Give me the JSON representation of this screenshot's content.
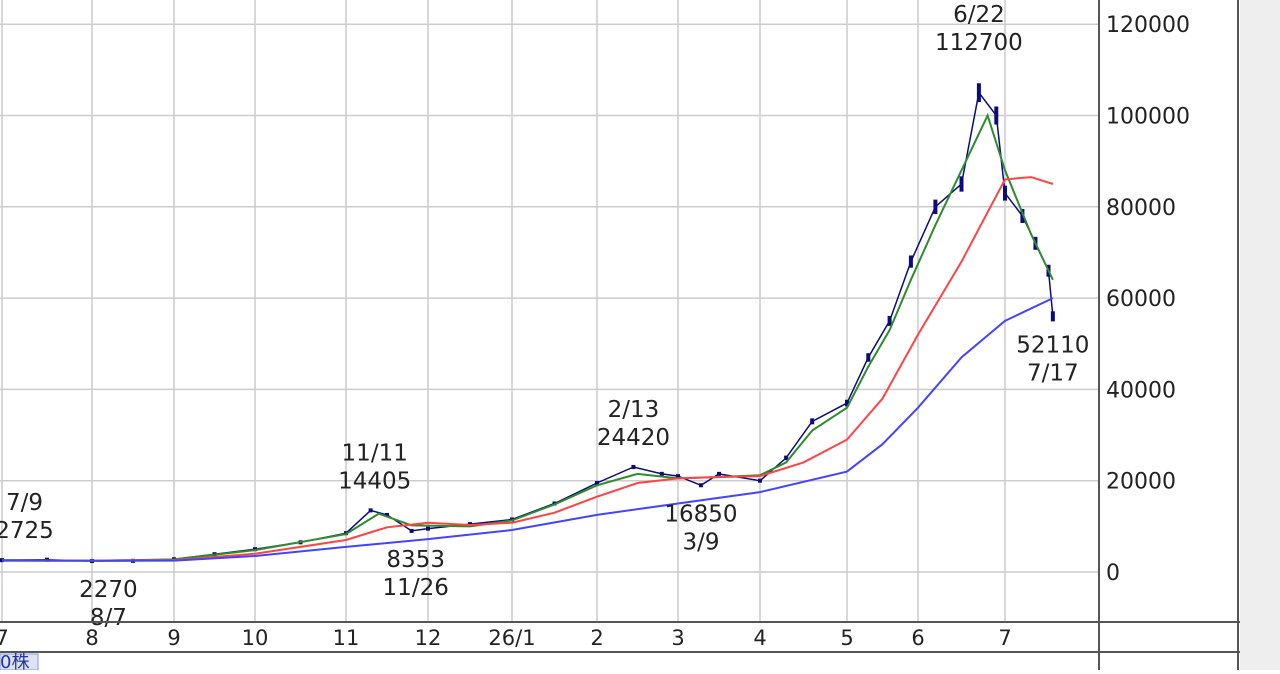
{
  "chart_data": {
    "type": "line",
    "y_axis": {
      "ticks": [
        "0",
        "20000",
        "40000",
        "60000",
        "80000",
        "100000",
        "120000"
      ],
      "tick_values": [
        0,
        20000,
        40000,
        60000,
        80000,
        100000,
        120000
      ],
      "ylim": [
        -10000,
        125000
      ],
      "position": "right"
    },
    "x_axis": {
      "tick_labels": [
        "7",
        "8",
        "9",
        "10",
        "11",
        "12",
        "26/1",
        "2",
        "3",
        "4",
        "5",
        "6",
        "7"
      ],
      "tick_months": [
        0,
        1,
        2,
        3,
        4,
        5,
        6,
        7,
        8,
        9,
        10,
        11,
        12
      ]
    },
    "grid": true,
    "annotations": [
      {
        "date": "7/9",
        "value": "2725",
        "month_pos": 0.25
      },
      {
        "date": "8/7",
        "value": "2270",
        "month_pos": 1.2
      },
      {
        "date": "11/11",
        "value": "14405",
        "month_pos": 4.35
      },
      {
        "date": "11/26",
        "value": "8353",
        "month_pos": 4.85
      },
      {
        "date": "2/13",
        "value": "24420",
        "month_pos": 7.45
      },
      {
        "date": "3/9",
        "value": "16850",
        "month_pos": 8.28
      },
      {
        "date": "6/22",
        "value": "112700",
        "month_pos": 11.7
      },
      {
        "date": "7/17",
        "value": "52110",
        "month_pos": 12.55
      }
    ],
    "series": [
      {
        "color": "#0b0b7a",
        "style": "candles",
        "points": [
          [
            0.0,
            2600
          ],
          [
            0.5,
            2700
          ],
          [
            1.0,
            2400
          ],
          [
            1.5,
            2450
          ],
          [
            2.0,
            2800
          ],
          [
            2.5,
            3900
          ],
          [
            3.0,
            5000
          ],
          [
            3.5,
            6500
          ],
          [
            4.0,
            8500
          ],
          [
            4.3,
            13500
          ],
          [
            4.5,
            12500
          ],
          [
            4.8,
            9000
          ],
          [
            5.0,
            9500
          ],
          [
            5.5,
            10500
          ],
          [
            6.0,
            11500
          ],
          [
            6.5,
            15000
          ],
          [
            7.0,
            19500
          ],
          [
            7.45,
            23000
          ],
          [
            7.8,
            21500
          ],
          [
            8.0,
            21000
          ],
          [
            8.28,
            19000
          ],
          [
            8.5,
            21500
          ],
          [
            9.0,
            20000
          ],
          [
            9.3,
            25000
          ],
          [
            9.6,
            33000
          ],
          [
            10.0,
            37000
          ],
          [
            10.3,
            47000
          ],
          [
            10.6,
            55000
          ],
          [
            10.9,
            68000
          ],
          [
            11.2,
            80000
          ],
          [
            11.5,
            85000
          ],
          [
            11.7,
            105000
          ],
          [
            11.9,
            100000
          ],
          [
            12.0,
            83000
          ],
          [
            12.2,
            78000
          ],
          [
            12.35,
            72000
          ],
          [
            12.5,
            66000
          ],
          [
            12.55,
            56000
          ]
        ]
      },
      {
        "color": "#2e8b2e",
        "style": "line",
        "points": [
          [
            0.0,
            2600
          ],
          [
            1.0,
            2450
          ],
          [
            2.0,
            2750
          ],
          [
            3.0,
            4800
          ],
          [
            4.0,
            8300
          ],
          [
            4.4,
            12800
          ],
          [
            4.8,
            10200
          ],
          [
            5.5,
            10000
          ],
          [
            6.0,
            11300
          ],
          [
            6.5,
            14800
          ],
          [
            7.0,
            19000
          ],
          [
            7.5,
            21500
          ],
          [
            8.0,
            20500
          ],
          [
            8.5,
            20800
          ],
          [
            9.0,
            21200
          ],
          [
            9.3,
            24000
          ],
          [
            9.6,
            31000
          ],
          [
            10.0,
            36000
          ],
          [
            10.3,
            45000
          ],
          [
            10.6,
            53000
          ],
          [
            10.9,
            64000
          ],
          [
            11.2,
            76000
          ],
          [
            11.5,
            88000
          ],
          [
            11.8,
            100000
          ],
          [
            12.0,
            88000
          ],
          [
            12.3,
            74000
          ],
          [
            12.55,
            64000
          ]
        ]
      },
      {
        "color": "#ff4444",
        "style": "line",
        "points": [
          [
            0.0,
            2500
          ],
          [
            1.0,
            2500
          ],
          [
            2.0,
            2600
          ],
          [
            3.0,
            4000
          ],
          [
            4.0,
            7000
          ],
          [
            4.5,
            9800
          ],
          [
            5.0,
            10800
          ],
          [
            5.5,
            10300
          ],
          [
            6.0,
            10800
          ],
          [
            6.5,
            13000
          ],
          [
            7.0,
            16500
          ],
          [
            7.5,
            19500
          ],
          [
            8.0,
            20500
          ],
          [
            8.5,
            20800
          ],
          [
            9.0,
            21000
          ],
          [
            9.5,
            24000
          ],
          [
            10.0,
            29000
          ],
          [
            10.5,
            38000
          ],
          [
            11.0,
            52000
          ],
          [
            11.5,
            68000
          ],
          [
            12.0,
            86000
          ],
          [
            12.3,
            86500
          ],
          [
            12.55,
            85000
          ]
        ]
      },
      {
        "color": "#4444ff",
        "style": "line",
        "points": [
          [
            0.0,
            2500
          ],
          [
            1.0,
            2450
          ],
          [
            2.0,
            2500
          ],
          [
            3.0,
            3500
          ],
          [
            4.0,
            5500
          ],
          [
            5.0,
            7200
          ],
          [
            6.0,
            9200
          ],
          [
            7.0,
            12500
          ],
          [
            8.0,
            15000
          ],
          [
            9.0,
            17500
          ],
          [
            10.0,
            22000
          ],
          [
            10.5,
            28000
          ],
          [
            11.0,
            36000
          ],
          [
            11.5,
            47000
          ],
          [
            12.0,
            55000
          ],
          [
            12.55,
            60000
          ]
        ]
      }
    ]
  },
  "footer": {
    "partial_label": "0株"
  },
  "colors": {
    "grid": "#cccccc",
    "axis": "#555555",
    "panel": "#eeeeee",
    "footer_text": "#2233aa"
  }
}
